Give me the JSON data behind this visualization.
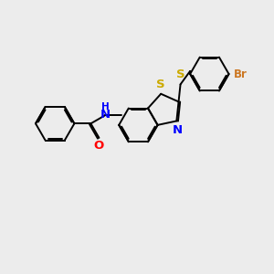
{
  "background_color": "#ececec",
  "bond_color": "#000000",
  "atom_colors": {
    "S": "#ccaa00",
    "N": "#0000ff",
    "O": "#ff0000",
    "Br": "#cc7722",
    "C": "#000000"
  },
  "lw": 1.4,
  "fs": 8.5,
  "dbo": 0.055
}
